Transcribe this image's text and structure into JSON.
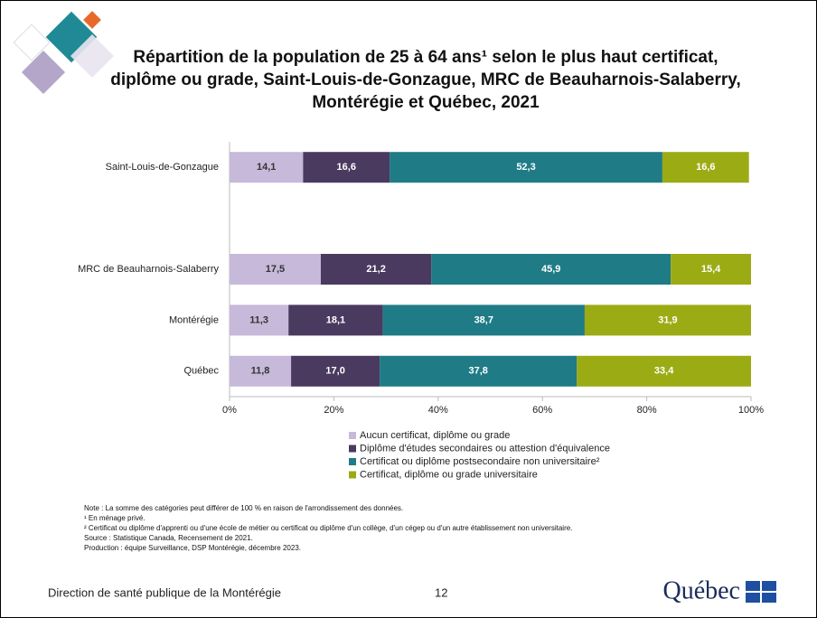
{
  "chart_data": {
    "type": "stacked_barh",
    "title": "Répartition de la population de 25 à 64 ans¹ selon le plus haut certificat, diplôme ou grade, Saint-Louis-de-Gonzague, MRC de Beauharnois-Salaberry, Montérégie et Québec, 2021",
    "categories": [
      "Saint-Louis-de-Gonzague",
      null,
      "MRC de Beauharnois-Salaberry",
      "Montérégie",
      "Québec"
    ],
    "series": [
      {
        "name": "Aucun certificat, diplôme ou grade",
        "color": "#c6b9d9",
        "values": [
          14.1,
          null,
          17.5,
          11.3,
          11.8
        ],
        "value_labels": [
          "14,1",
          null,
          "17,5",
          "11,3",
          "11,8"
        ]
      },
      {
        "name": "Diplôme d'études secondaires ou attestion d'équivalence",
        "color": "#4a3a5f",
        "values": [
          16.6,
          null,
          21.2,
          18.1,
          17.0
        ],
        "value_labels": [
          "16,6",
          null,
          "21,2",
          "18,1",
          "17,0"
        ]
      },
      {
        "name": "Certificat ou diplôme postsecondaire non universitaire²",
        "color": "#1f7b86",
        "values": [
          52.3,
          null,
          45.9,
          38.7,
          37.8
        ],
        "value_labels": [
          "52,3",
          null,
          "45,9",
          "38,7",
          "37,8"
        ]
      },
      {
        "name": "Certificat, diplôme ou grade universitaire",
        "color": "#9bab14",
        "values": [
          16.6,
          null,
          15.4,
          31.9,
          33.4
        ],
        "value_labels": [
          "16,6",
          null,
          "15,4",
          "31,9",
          "33,4"
        ]
      }
    ],
    "xlim": [
      0,
      100
    ],
    "xticks": [
      {
        "value": 0,
        "label": "0%"
      },
      {
        "value": 20,
        "label": "20%"
      },
      {
        "value": 40,
        "label": "40%"
      },
      {
        "value": 60,
        "label": "60%"
      },
      {
        "value": 80,
        "label": "80%"
      },
      {
        "value": 100,
        "label": "100%"
      }
    ],
    "grid": false,
    "legend": "bottom"
  },
  "notes": [
    "Note : La somme des catégories peut différer de 100 % en raison de l'arrondissement des données.",
    "¹ En ménage privé.",
    "² Certificat ou diplôme d'apprenti ou d'une école de métier ou certificat ou diplôme d'un collège, d'un cégep ou d'un autre établissement non universitaire.",
    "Source : Statistique Canada, Recensement de 2021.",
    "Production : équipe Surveillance, DSP Montérégie, décembre 2023."
  ],
  "footer": {
    "organization": "Direction de santé publique de la Montérégie",
    "page": "12",
    "logo": "Québec"
  }
}
